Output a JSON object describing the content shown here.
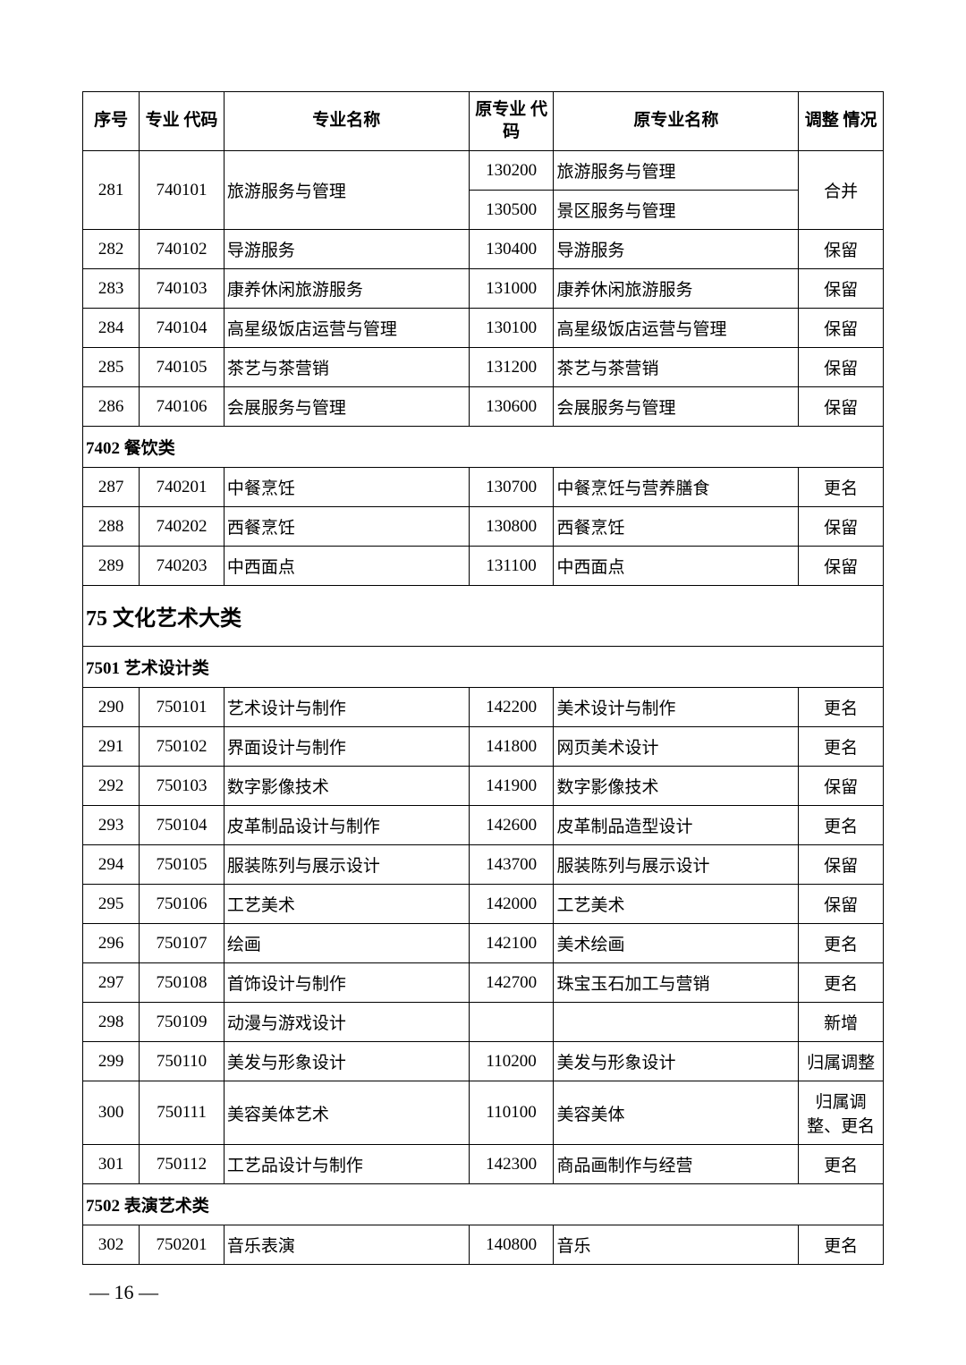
{
  "headers": {
    "seq": "序号",
    "code": "专业\n代码",
    "name": "专业名称",
    "ocode": "原专业\n代码",
    "oname": "原专业名称",
    "adj": "调整\n情况"
  },
  "majorSection": "75 文化艺术大类",
  "sections": [
    {
      "rows": [
        {
          "seq": "281",
          "seqSpan": 2,
          "code": "740101",
          "codeSpan": 2,
          "name": "旅游服务与管理",
          "nameSpan": 2,
          "ocode": "130200",
          "oname": "旅游服务与管理",
          "adj": "合并",
          "adjSpan": 2
        },
        {
          "ocode": "130500",
          "oname": "景区服务与管理"
        },
        {
          "seq": "282",
          "code": "740102",
          "name": "导游服务",
          "ocode": "130400",
          "oname": "导游服务",
          "adj": "保留"
        },
        {
          "seq": "283",
          "code": "740103",
          "name": "康养休闲旅游服务",
          "ocode": "131000",
          "oname": "康养休闲旅游服务",
          "adj": "保留"
        },
        {
          "seq": "284",
          "code": "740104",
          "name": "高星级饭店运营与管理",
          "ocode": "130100",
          "oname": "高星级饭店运营与管理",
          "adj": "保留"
        },
        {
          "seq": "285",
          "code": "740105",
          "name": "茶艺与茶营销",
          "ocode": "131200",
          "oname": "茶艺与茶营销",
          "adj": "保留"
        },
        {
          "seq": "286",
          "code": "740106",
          "name": "会展服务与管理",
          "ocode": "130600",
          "oname": "会展服务与管理",
          "adj": "保留"
        }
      ]
    },
    {
      "title": "7402 餐饮类",
      "rows": [
        {
          "seq": "287",
          "code": "740201",
          "name": "中餐烹饪",
          "ocode": "130700",
          "oname": "中餐烹饪与营养膳食",
          "adj": "更名"
        },
        {
          "seq": "288",
          "code": "740202",
          "name": "西餐烹饪",
          "ocode": "130800",
          "oname": "西餐烹饪",
          "adj": "保留"
        },
        {
          "seq": "289",
          "code": "740203",
          "name": "中西面点",
          "ocode": "131100",
          "oname": "中西面点",
          "adj": "保留"
        }
      ]
    },
    {
      "majorBefore": true,
      "title": "7501 艺术设计类",
      "rows": [
        {
          "seq": "290",
          "code": "750101",
          "name": "艺术设计与制作",
          "ocode": "142200",
          "oname": "美术设计与制作",
          "adj": "更名"
        },
        {
          "seq": "291",
          "code": "750102",
          "name": "界面设计与制作",
          "ocode": "141800",
          "oname": "网页美术设计",
          "adj": "更名"
        },
        {
          "seq": "292",
          "code": "750103",
          "name": "数字影像技术",
          "ocode": "141900",
          "oname": "数字影像技术",
          "adj": "保留"
        },
        {
          "seq": "293",
          "code": "750104",
          "name": "皮革制品设计与制作",
          "ocode": "142600",
          "oname": "皮革制品造型设计",
          "adj": "更名"
        },
        {
          "seq": "294",
          "code": "750105",
          "name": "服装陈列与展示设计",
          "ocode": "143700",
          "oname": "服装陈列与展示设计",
          "adj": "保留"
        },
        {
          "seq": "295",
          "code": "750106",
          "name": "工艺美术",
          "ocode": "142000",
          "oname": "工艺美术",
          "adj": "保留"
        },
        {
          "seq": "296",
          "code": "750107",
          "name": "绘画",
          "ocode": "142100",
          "oname": "美术绘画",
          "adj": "更名"
        },
        {
          "seq": "297",
          "code": "750108",
          "name": "首饰设计与制作",
          "ocode": "142700",
          "oname": "珠宝玉石加工与营销",
          "adj": "更名"
        },
        {
          "seq": "298",
          "code": "750109",
          "name": "动漫与游戏设计",
          "ocode": "",
          "oname": "",
          "adj": "新增"
        },
        {
          "seq": "299",
          "code": "750110",
          "name": "美发与形象设计",
          "ocode": "110200",
          "oname": "美发与形象设计",
          "adj": "归属调整"
        },
        {
          "seq": "300",
          "code": "750111",
          "name": "美容美体艺术",
          "ocode": "110100",
          "oname": "美容美体",
          "adj": "归属调整、更名"
        },
        {
          "seq": "301",
          "code": "750112",
          "name": "工艺品设计与制作",
          "ocode": "142300",
          "oname": "商品画制作与经营",
          "adj": "更名"
        }
      ]
    },
    {
      "title": "7502 表演艺术类",
      "rows": [
        {
          "seq": "302",
          "code": "750201",
          "name": "音乐表演",
          "ocode": "140800",
          "oname": "音乐",
          "adj": "更名"
        }
      ]
    }
  ],
  "pageNumber": "— 16 —"
}
